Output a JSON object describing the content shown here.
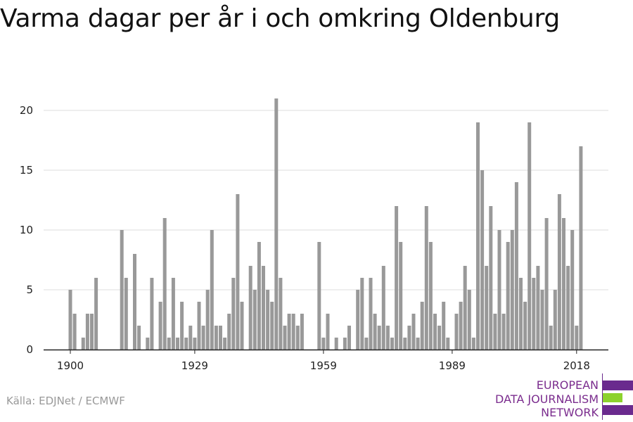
{
  "title": "Varma dagar per år i och omkring Oldenburg",
  "source": "Källa: EDJNet / ECMWF",
  "logo": {
    "lines": [
      "EUROPEAN",
      "DATA JOURNALISM",
      "NETWORK"
    ],
    "colors": {
      "purple": "#6a2a8e",
      "green": "#8cd22d",
      "text": "#7b2d8e"
    }
  },
  "colors": {
    "bar": "#999999",
    "grid": "#dddddd",
    "axis": "#222222",
    "text": "#222222"
  },
  "chart_data": {
    "type": "bar",
    "title": "Varma dagar per år i och omkring Oldenburg",
    "xlabel": "",
    "ylabel": "",
    "x_tick_labels": [
      "1900",
      "1929",
      "1959",
      "1989",
      "2018"
    ],
    "y_ticks": [
      0,
      5,
      10,
      15,
      20
    ],
    "ylim": [
      0,
      22
    ],
    "grid": true,
    "first_year": 1900,
    "values": [
      5,
      3,
      0,
      1,
      3,
      3,
      6,
      0,
      0,
      0,
      0,
      0,
      10,
      6,
      0,
      8,
      2,
      0,
      1,
      6,
      0,
      4,
      11,
      1,
      6,
      1,
      4,
      1,
      2,
      1,
      4,
      2,
      5,
      10,
      2,
      2,
      1,
      3,
      6,
      13,
      4,
      0,
      7,
      5,
      9,
      7,
      5,
      4,
      21,
      6,
      2,
      3,
      3,
      2,
      3,
      0,
      0,
      0,
      9,
      1,
      3,
      0,
      1,
      0,
      1,
      2,
      0,
      5,
      6,
      1,
      6,
      3,
      2,
      7,
      2,
      1,
      12,
      9,
      1,
      2,
      3,
      1,
      4,
      12,
      9,
      3,
      2,
      4,
      1,
      0,
      3,
      4,
      7,
      5,
      1,
      19,
      15,
      7,
      12,
      3,
      10,
      3,
      9,
      10,
      14,
      6,
      4,
      19,
      6,
      7,
      5,
      11,
      2,
      5,
      13,
      11,
      7,
      10,
      2,
      17
    ]
  }
}
